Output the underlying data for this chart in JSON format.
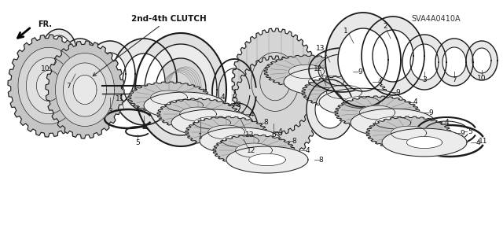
{
  "background_color": "#ffffff",
  "diagram_code": "SVA4A0410A",
  "label_text": "2nd-4th CLUTCH",
  "fr_label": "FR.",
  "figsize": [
    6.4,
    3.19
  ],
  "dpi": 100
}
